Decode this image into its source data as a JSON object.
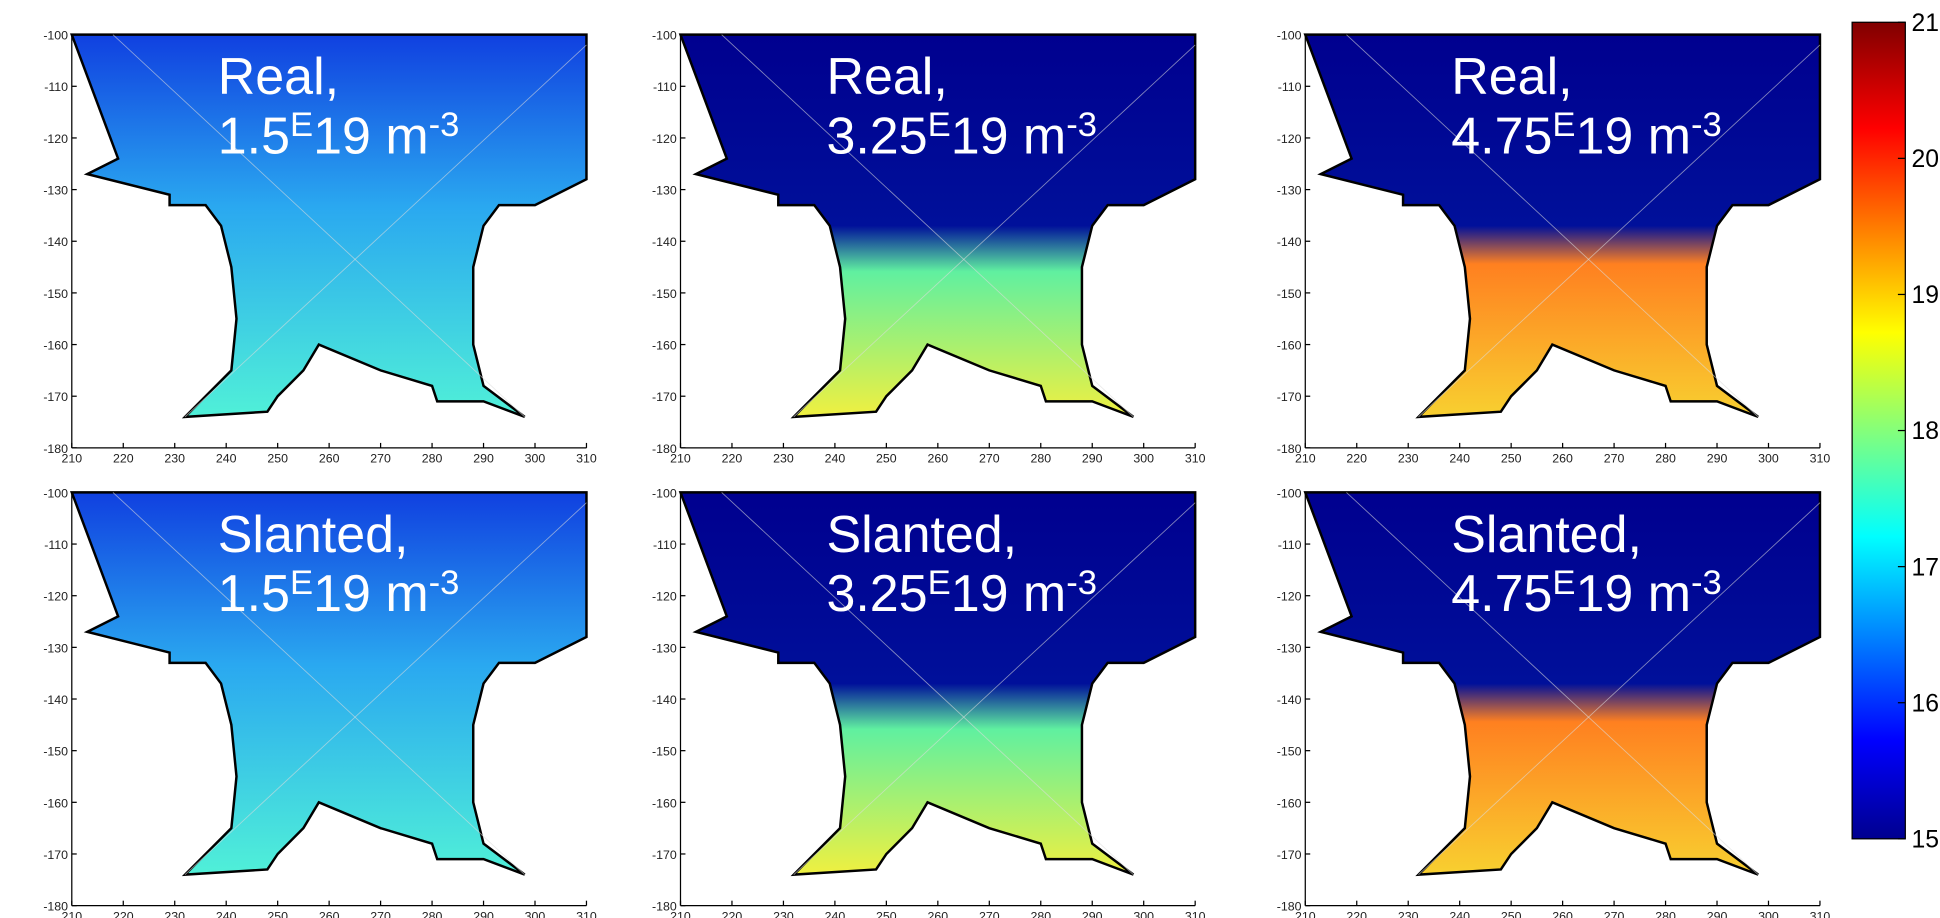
{
  "panels": [
    {
      "title": "Real,",
      "density": "1.5",
      "exp": "E",
      "unit": "19 m",
      "sup": "-3"
    },
    {
      "title": "Real,",
      "density": "3.25",
      "exp": "E",
      "unit": "19 m",
      "sup": "-3"
    },
    {
      "title": "Real,",
      "density": "4.75",
      "exp": "E",
      "unit": "19 m",
      "sup": "-3"
    },
    {
      "title": "Slanted,",
      "density": "1.5",
      "exp": "E",
      "unit": "19 m",
      "sup": "-3"
    },
    {
      "title": "Slanted,",
      "density": "3.25",
      "exp": "E",
      "unit": "19 m",
      "sup": "-3"
    },
    {
      "title": "Slanted,",
      "density": "4.75",
      "exp": "E",
      "unit": "19 m",
      "sup": "-3"
    }
  ],
  "axes": {
    "xlim": [
      210,
      310
    ],
    "ylim": [
      -180,
      -100
    ],
    "xticks": [
      210,
      220,
      230,
      240,
      250,
      260,
      270,
      280,
      290,
      300,
      310
    ],
    "yticks": [
      -100,
      -110,
      -120,
      -130,
      -140,
      -150,
      -160,
      -170,
      -180
    ]
  },
  "colorbar": {
    "lim": [
      15,
      21
    ],
    "ticks": [
      15,
      16,
      17,
      18,
      19,
      20,
      21
    ]
  }
}
